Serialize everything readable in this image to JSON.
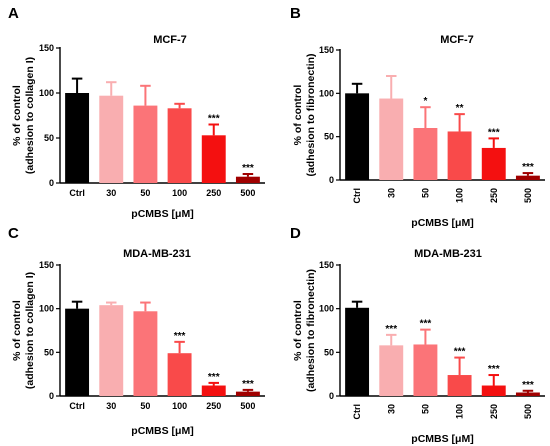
{
  "colors": [
    "#000000",
    "#f9aeb0",
    "#fb7478",
    "#f94a4a",
    "#f41010",
    "#a00000"
  ],
  "chart_data": [
    {
      "type": "bar",
      "letter": "A",
      "title": "MCF-7",
      "ylabel_lines": [
        "% of control",
        "(adhesion to collagen I)"
      ],
      "xlabel": "pCMBS [μM]",
      "categories": [
        "Ctrl",
        "30",
        "50",
        "100",
        "250",
        "500"
      ],
      "values": [
        100,
        97,
        86,
        83,
        53,
        7
      ],
      "errors": [
        16,
        15,
        22,
        5,
        12,
        3
      ],
      "significance": [
        "",
        "",
        "",
        "",
        "***",
        "***"
      ],
      "ylim": [
        0,
        150
      ],
      "yticks": [
        0,
        50,
        100,
        150
      ],
      "rotate_categories": false
    },
    {
      "type": "bar",
      "letter": "B",
      "title": "MCF-7",
      "ylabel_lines": [
        "% of control",
        "(adhesion to fibronectin)"
      ],
      "xlabel": "pCMBS [μM]",
      "categories": [
        "Ctrl",
        "30",
        "50",
        "100",
        "250",
        "500"
      ],
      "values": [
        100,
        94,
        60,
        56,
        37,
        5
      ],
      "errors": [
        11,
        26,
        24,
        20,
        11,
        3
      ],
      "significance": [
        "",
        "",
        "*",
        "**",
        "***",
        "***"
      ],
      "ylim": [
        0,
        150
      ],
      "yticks": [
        0,
        50,
        100,
        150
      ],
      "rotate_categories": true
    },
    {
      "type": "bar",
      "letter": "C",
      "title": "MDA-MB-231",
      "ylabel_lines": [
        "% of control",
        "(adhesion to collagen I)"
      ],
      "xlabel": "pCMBS [μM]",
      "categories": [
        "Ctrl",
        "30",
        "50",
        "100",
        "250",
        "500"
      ],
      "values": [
        100,
        104,
        97,
        49,
        12,
        5
      ],
      "errors": [
        8,
        3,
        10,
        13,
        3,
        2
      ],
      "significance": [
        "",
        "",
        "",
        "***",
        "***",
        "***"
      ],
      "ylim": [
        0,
        150
      ],
      "yticks": [
        0,
        50,
        100,
        150
      ],
      "rotate_categories": false
    },
    {
      "type": "bar",
      "letter": "D",
      "title": "MDA-MB-231",
      "ylabel_lines": [
        "% of control",
        "(adhesion to fibronectin)"
      ],
      "xlabel": "pCMBS [μM]",
      "categories": [
        "Ctrl",
        "30",
        "50",
        "100",
        "250",
        "500"
      ],
      "values": [
        101,
        58,
        59,
        24,
        12,
        4
      ],
      "errors": [
        7,
        12,
        17,
        20,
        12,
        2
      ],
      "significance": [
        "",
        "***",
        "***",
        "***",
        "***",
        "***"
      ],
      "ylim": [
        0,
        150
      ],
      "yticks": [
        0,
        50,
        100,
        150
      ],
      "rotate_categories": true
    }
  ]
}
